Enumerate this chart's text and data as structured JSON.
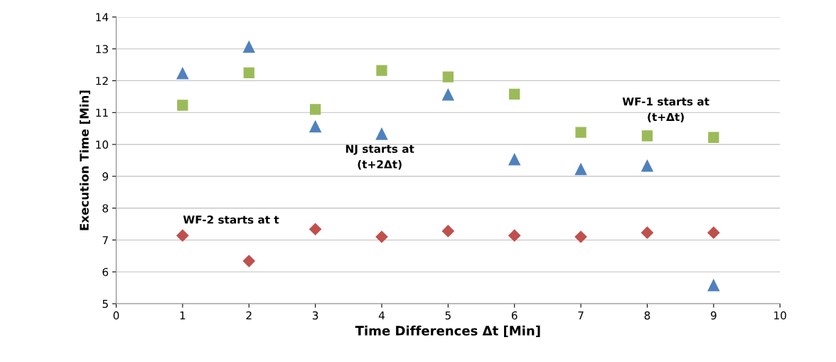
{
  "chart_data": {
    "type": "scatter",
    "xlabel": "Time Differences Δt [Min]",
    "ylabel": "Execution Time [Min]",
    "x": [
      1,
      2,
      3,
      4,
      5,
      6,
      7,
      8,
      9
    ],
    "series": [
      {
        "color": "#4f81bd",
        "marker": "triangle",
        "values": [
          12.23,
          13.06,
          10.56,
          10.33,
          11.56,
          9.53,
          9.22,
          9.33,
          5.58
        ]
      },
      {
        "color": "#9bbb59",
        "marker": "square",
        "values": [
          11.23,
          12.25,
          11.1,
          12.32,
          12.12,
          11.58,
          10.38,
          10.27,
          10.22
        ]
      },
      {
        "color": "#c0504d",
        "marker": "diamond",
        "values": [
          7.14,
          6.34,
          7.34,
          7.1,
          7.28,
          7.14,
          7.1,
          7.23,
          7.23
        ]
      }
    ],
    "xlim": [
      0,
      10
    ],
    "xticks": [
      0,
      1,
      2,
      3,
      4,
      5,
      6,
      7,
      8,
      9,
      10
    ],
    "ylim": [
      5,
      14
    ],
    "yticks": [
      5,
      6,
      7,
      8,
      9,
      10,
      11,
      12,
      13,
      14
    ],
    "grid": "y",
    "legend": false,
    "annotations": [
      "NJ starts at\n(t+2Δt)",
      "WF-1 starts at\n(t+Δt)",
      "WF-2 starts at t"
    ]
  }
}
